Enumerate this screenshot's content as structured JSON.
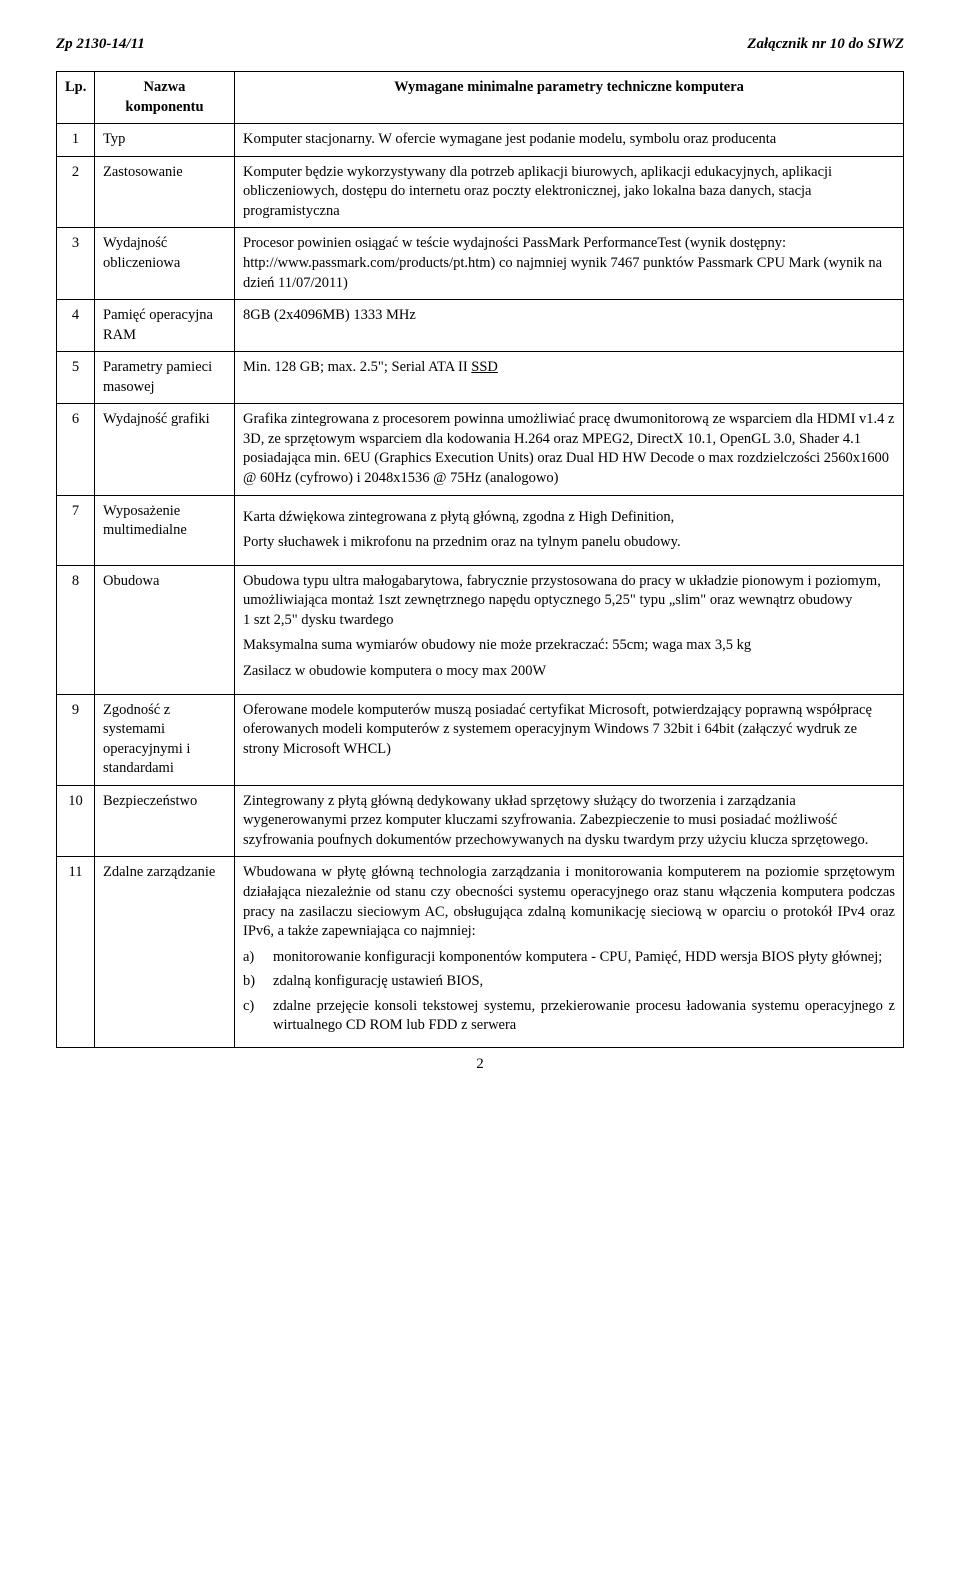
{
  "header": {
    "left": "Zp 2130-14/11",
    "right": "Załącznik nr 10 do SIWZ"
  },
  "table": {
    "head": {
      "lp": "Lp.",
      "name_l1": "Nazwa",
      "name_l2": "komponentu",
      "req": "Wymagane minimalne parametry techniczne komputera"
    },
    "rows": {
      "r1": {
        "n": "1",
        "name": "Typ",
        "d1": "Komputer stacjonarny. W ofercie wymagane jest podanie modelu, symbolu oraz producenta"
      },
      "r2": {
        "n": "2",
        "name": "Zastosowanie",
        "d1": "Komputer będzie wykorzystywany dla potrzeb aplikacji biurowych, aplikacji edukacyjnych, aplikacji obliczeniowych, dostępu do internetu oraz poczty elektronicznej, jako lokalna baza danych, stacja programistyczna"
      },
      "r3": {
        "n": "3",
        "name": "Wydajność obliczeniowa",
        "d1": "Procesor powinien osiągać w teście wydajności PassMark PerformanceTest (wynik dostępny: http://www.passmark.com/products/pt.htm) co najmniej wynik 7467 punktów Passmark CPU Mark (wynik na dzień 11/07/2011)"
      },
      "r4": {
        "n": "4",
        "name": "Pamięć operacyjna RAM",
        "d1": "8GB (2x4096MB) 1333 MHz"
      },
      "r5": {
        "n": "5",
        "name": "Parametry pamieci masowej",
        "d1_pre": "Min. 128 GB; max. 2.5\"; Serial ATA II ",
        "d1_u": "SSD"
      },
      "r6": {
        "n": "6",
        "name": "Wydajność grafiki",
        "d1": "Grafika zintegrowana z procesorem powinna umożliwiać pracę dwumonitorową  ze wsparciem dla HDMI v1.4 z 3D, ze sprzętowym wsparciem dla kodowania H.264 oraz MPEG2, DirectX 10.1, OpenGL 3.0, Shader 4.1 posiadająca min. 6EU (Graphics Execution Units) oraz Dual HD HW Decode o max rozdzielczości 2560x1600 @ 60Hz (cyfrowo) i 2048x1536 @ 75Hz (analogowo)"
      },
      "r7": {
        "n": "7",
        "name": "Wyposażenie multimedialne",
        "d1": "Karta dźwiękowa zintegrowana z płytą główną, zgodna z High Definition,",
        "d2": "Porty słuchawek i mikrofonu na przednim oraz na tylnym panelu obudowy."
      },
      "r8": {
        "n": "8",
        "name": "Obudowa",
        "d1": "Obudowa typu ultra małogabarytowa, fabrycznie przystosowana do pracy w układzie pionowym i poziomym, umożliwiająca montaż 1szt zewnętrznego napędu optycznego 5,25\" typu „slim\" oraz wewnątrz obudowy",
        "d1b": "1 szt 2,5\" dysku twardego",
        "d2": "Maksymalna suma wymiarów obudowy nie może przekraczać: 55cm; waga max 3,5 kg",
        "d3": "Zasilacz w obudowie komputera o mocy max 200W"
      },
      "r9": {
        "n": "9",
        "name": "Zgodność z systemami operacyjnymi i standardami",
        "d1": "Oferowane modele komputerów muszą posiadać certyfikat Microsoft, potwierdzający poprawną współpracę oferowanych modeli komputerów z systemem operacyjnym Windows 7 32bit i 64bit (załączyć wydruk ze strony Microsoft WHCL)"
      },
      "r10": {
        "n": "10",
        "name": "Bezpieczeństwo",
        "d1": "Zintegrowany z płytą główną dedykowany układ sprzętowy służący do tworzenia i zarządzania wygenerowanymi przez komputer kluczami szyfrowania. Zabezpieczenie to musi posiadać możliwość szyfrowania poufnych dokumentów przechowywanych na dysku twardym przy użyciu klucza sprzętowego."
      },
      "r11": {
        "n": "11",
        "name": "Zdalne zarządzanie",
        "d1": "Wbudowana w płytę główną technologia zarządzania i monitorowania komputerem na poziomie sprzętowym działająca niezależnie od stanu czy obecności systemu operacyjnego oraz stanu włączenia komputera podczas pracy na zasilaczu sieciowym AC, obsługująca zdalną komunikację sieciową w oparciu o protokół IPv4 oraz IPv6, a także zapewniająca co najmniej:",
        "a_k": "a)",
        "a_t": "monitorowanie konfiguracji komponentów komputera - CPU, Pamięć, HDD wersja BIOS płyty głównej;",
        "b_k": "b)",
        "b_t": "zdalną konfigurację ustawień BIOS,",
        "c_k": "c)",
        "c_t": "zdalne przejęcie konsoli tekstowej systemu, przekierowanie procesu ładowania systemu operacyjnego z wirtualnego CD ROM lub FDD z   serwera"
      }
    }
  },
  "pagenum": "2"
}
